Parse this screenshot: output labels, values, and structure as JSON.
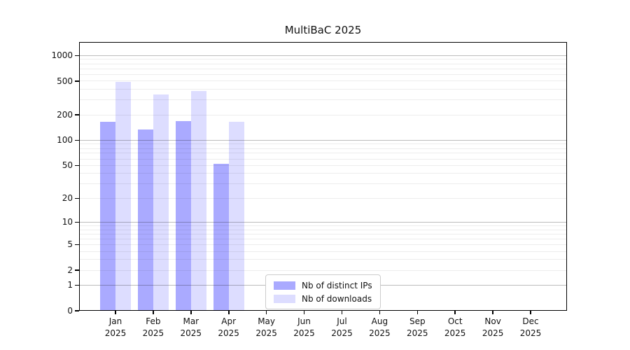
{
  "chart_data": {
    "type": "bar",
    "title": "MultiBaC 2025",
    "categories": [
      "Jan",
      "Feb",
      "Mar",
      "Apr",
      "May",
      "Jun",
      "Jul",
      "Aug",
      "Sep",
      "Oct",
      "Nov",
      "Dec"
    ],
    "category_year": "2025",
    "series": [
      {
        "name": "Nb of distinct IPs",
        "key": "distinct-ips",
        "color": "#aaaaff",
        "values": [
          165,
          134,
          170,
          52,
          0,
          0,
          0,
          0,
          0,
          0,
          0,
          0
        ]
      },
      {
        "name": "Nb of downloads",
        "key": "downloads",
        "color": "#ddddff",
        "values": [
          485,
          348,
          383,
          164,
          0,
          0,
          0,
          0,
          0,
          0,
          0,
          0
        ]
      }
    ],
    "yscale": "log1p",
    "yticks": [
      0,
      1,
      2,
      5,
      10,
      20,
      50,
      100,
      200,
      500,
      1000
    ],
    "ylim": [
      0,
      1440
    ],
    "grid": "major-and-minor",
    "legend_position": "lower-center",
    "colors": {
      "major_grid": "#bfbfbf",
      "minor_grid": "#ebebeb",
      "axis": "#000000",
      "text": "#111111"
    }
  }
}
